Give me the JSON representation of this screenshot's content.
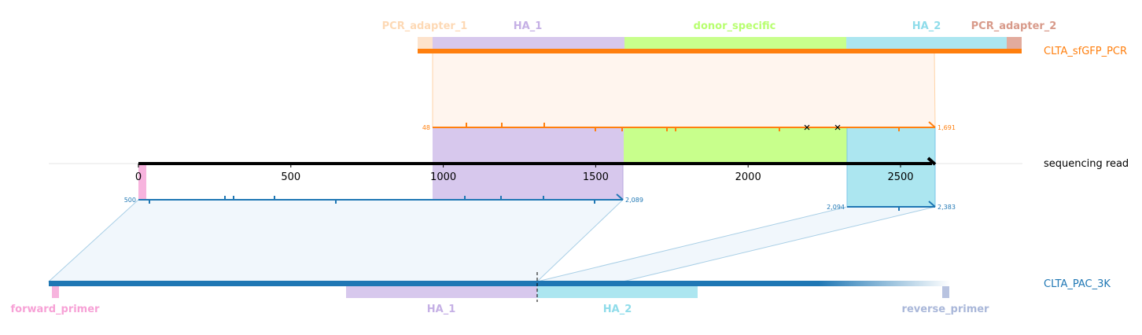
{
  "tracks": {
    "pcr": {
      "name": "CLTA_sfGFP_PCR",
      "color": "#ff7f0e"
    },
    "read": {
      "name": "sequencing read",
      "color": "#000000"
    },
    "pac": {
      "name": "CLTA_PAC_3K",
      "color": "#1f77b4"
    }
  },
  "pcr_features": [
    {
      "name": "PCR_adapter_1",
      "color": "#fdd9b5"
    },
    {
      "name": "HA_1",
      "color": "#c5b0e5"
    },
    {
      "name": "donor_specific",
      "color": "#b8ff70"
    },
    {
      "name": "HA_2",
      "color": "#8fdcea"
    },
    {
      "name": "PCR_adapter_2",
      "color": "#d89a8a"
    }
  ],
  "pac_features": [
    {
      "name": "forward_primer",
      "color": "#f7a1d6"
    },
    {
      "name": "HA_1",
      "color": "#c5b0e5"
    },
    {
      "name": "HA_2",
      "color": "#8fdcea"
    },
    {
      "name": "reverse_primer",
      "color": "#a9b7d9"
    }
  ],
  "read_axis": {
    "min": 0,
    "max": 2600,
    "ticks": [
      "0",
      "500",
      "1000",
      "1500",
      "2000",
      "2500"
    ]
  },
  "alignments": {
    "pcr_to_read": {
      "start_label": "48",
      "end_label": "1,691"
    },
    "pac_to_read_1": {
      "start_label": "500",
      "end_label": "2,089"
    },
    "pac_to_read_2": {
      "start_label": "2,094",
      "end_label": "2,383"
    }
  }
}
